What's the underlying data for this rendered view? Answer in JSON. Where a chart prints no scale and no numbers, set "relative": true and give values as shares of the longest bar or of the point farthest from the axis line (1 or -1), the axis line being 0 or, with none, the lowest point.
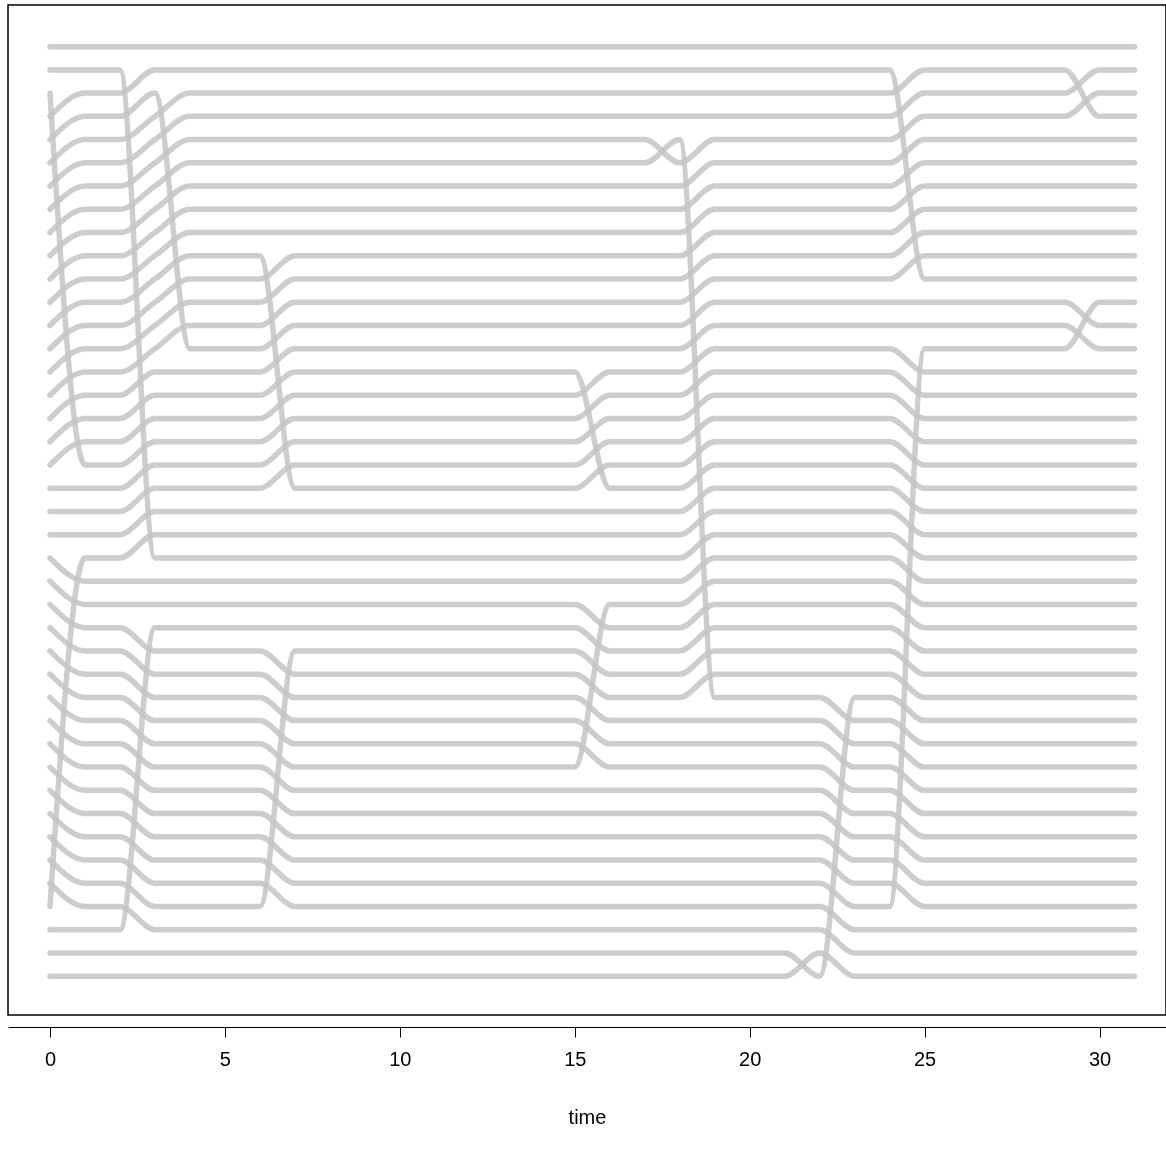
{
  "chart_data": {
    "type": "line",
    "xlabel": "time",
    "relative": true,
    "xlim": [
      -1.2,
      31.9
    ],
    "xticks": [
      0,
      5,
      10,
      15,
      20,
      25,
      30
    ],
    "x": [
      0,
      1,
      2,
      3,
      4,
      5,
      6,
      7,
      8,
      9,
      10,
      11,
      12,
      13,
      14,
      15,
      16,
      17,
      18,
      19,
      20,
      21,
      22,
      23,
      24,
      25,
      26,
      27,
      28,
      29,
      30,
      31
    ],
    "series": [
      {
        "color": "#c4c4c4",
        "values": [
          1,
          1,
          1,
          1,
          1,
          1,
          1,
          1,
          1,
          1,
          1,
          1,
          1,
          1,
          1,
          1,
          1,
          1,
          1,
          1,
          1,
          1,
          1,
          1,
          1,
          1,
          1,
          1,
          1,
          1,
          1,
          1
        ]
      },
      {
        "color": "#c4c4c4",
        "values": [
          0.976,
          0.976,
          0.976,
          0.472,
          0.472,
          0.472,
          0.472,
          0.472,
          0.472,
          0.472,
          0.472,
          0.472,
          0.472,
          0.472,
          0.472,
          0.472,
          0.472,
          0.472,
          0.472,
          0.496,
          0.496,
          0.496,
          0.496,
          0.496,
          0.496,
          0.472,
          0.472,
          0.472,
          0.472,
          0.472,
          0.472,
          0.472
        ]
      },
      {
        "color": "#c4c4c4",
        "values": [
          0.952,
          0.568,
          0.568,
          0.592,
          0.592,
          0.592,
          0.592,
          0.616,
          0.616,
          0.616,
          0.616,
          0.616,
          0.616,
          0.616,
          0.616,
          0.616,
          0.64,
          0.64,
          0.64,
          0.664,
          0.664,
          0.664,
          0.664,
          0.664,
          0.664,
          0.64,
          0.64,
          0.64,
          0.64,
          0.64,
          0.64,
          0.64
        ]
      },
      {
        "color": "#c4c4c4",
        "values": [
          0.928,
          0.952,
          0.952,
          0.976,
          0.976,
          0.976,
          0.976,
          0.976,
          0.976,
          0.976,
          0.976,
          0.976,
          0.976,
          0.976,
          0.976,
          0.976,
          0.976,
          0.976,
          0.976,
          0.976,
          0.976,
          0.976,
          0.976,
          0.976,
          0.976,
          0.76,
          0.76,
          0.76,
          0.76,
          0.76,
          0.76,
          0.76
        ]
      },
      {
        "color": "#c4c4c4",
        "values": [
          0.904,
          0.928,
          0.928,
          0.952,
          0.688,
          0.688,
          0.688,
          0.712,
          0.712,
          0.712,
          0.712,
          0.712,
          0.712,
          0.712,
          0.712,
          0.712,
          0.712,
          0.712,
          0.712,
          0.736,
          0.736,
          0.736,
          0.736,
          0.736,
          0.736,
          0.736,
          0.736,
          0.736,
          0.736,
          0.736,
          0.712,
          0.712
        ]
      },
      {
        "color": "#c4c4c4",
        "values": [
          0.88,
          0.904,
          0.904,
          0.928,
          0.952,
          0.952,
          0.952,
          0.952,
          0.952,
          0.952,
          0.952,
          0.952,
          0.952,
          0.952,
          0.952,
          0.952,
          0.952,
          0.952,
          0.952,
          0.952,
          0.952,
          0.952,
          0.952,
          0.952,
          0.952,
          0.976,
          0.976,
          0.976,
          0.976,
          0.976,
          0.928,
          0.928
        ]
      },
      {
        "color": "#c4c4c4",
        "values": [
          0.856,
          0.88,
          0.88,
          0.904,
          0.928,
          0.928,
          0.928,
          0.928,
          0.928,
          0.928,
          0.928,
          0.928,
          0.928,
          0.928,
          0.928,
          0.928,
          0.928,
          0.928,
          0.928,
          0.928,
          0.928,
          0.928,
          0.928,
          0.928,
          0.928,
          0.952,
          0.952,
          0.952,
          0.952,
          0.952,
          0.976,
          0.976
        ]
      },
      {
        "color": "#c4c4c4",
        "values": [
          0.832,
          0.856,
          0.856,
          0.88,
          0.904,
          0.904,
          0.904,
          0.904,
          0.904,
          0.904,
          0.904,
          0.904,
          0.904,
          0.904,
          0.904,
          0.904,
          0.904,
          0.904,
          0.88,
          0.904,
          0.904,
          0.904,
          0.904,
          0.904,
          0.904,
          0.928,
          0.928,
          0.928,
          0.928,
          0.928,
          0.952,
          0.952
        ]
      },
      {
        "color": "#c4c4c4",
        "values": [
          0.808,
          0.832,
          0.832,
          0.856,
          0.88,
          0.88,
          0.88,
          0.88,
          0.88,
          0.88,
          0.88,
          0.88,
          0.88,
          0.88,
          0.88,
          0.88,
          0.88,
          0.88,
          0.904,
          0.328,
          0.328,
          0.328,
          0.328,
          0.304,
          0.304,
          0.28,
          0.28,
          0.28,
          0.28,
          0.28,
          0.28,
          0.28
        ]
      },
      {
        "color": "#c4c4c4",
        "values": [
          0.784,
          0.808,
          0.808,
          0.832,
          0.856,
          0.856,
          0.856,
          0.856,
          0.856,
          0.856,
          0.856,
          0.856,
          0.856,
          0.856,
          0.856,
          0.856,
          0.856,
          0.856,
          0.856,
          0.88,
          0.88,
          0.88,
          0.88,
          0.88,
          0.88,
          0.904,
          0.904,
          0.904,
          0.904,
          0.904,
          0.904,
          0.904
        ]
      },
      {
        "color": "#c4c4c4",
        "values": [
          0.76,
          0.784,
          0.784,
          0.808,
          0.832,
          0.832,
          0.832,
          0.832,
          0.832,
          0.832,
          0.832,
          0.832,
          0.832,
          0.832,
          0.832,
          0.832,
          0.832,
          0.832,
          0.832,
          0.856,
          0.856,
          0.856,
          0.856,
          0.856,
          0.856,
          0.88,
          0.88,
          0.88,
          0.88,
          0.88,
          0.88,
          0.88
        ]
      },
      {
        "color": "#c4c4c4",
        "values": [
          0.736,
          0.76,
          0.76,
          0.784,
          0.808,
          0.808,
          0.808,
          0.808,
          0.808,
          0.808,
          0.808,
          0.808,
          0.808,
          0.808,
          0.808,
          0.808,
          0.808,
          0.808,
          0.808,
          0.832,
          0.832,
          0.832,
          0.832,
          0.832,
          0.832,
          0.856,
          0.856,
          0.856,
          0.856,
          0.856,
          0.856,
          0.856
        ]
      },
      {
        "color": "#c4c4c4",
        "values": [
          0.712,
          0.736,
          0.736,
          0.76,
          0.784,
          0.784,
          0.784,
          0.544,
          0.544,
          0.544,
          0.544,
          0.544,
          0.544,
          0.544,
          0.544,
          0.544,
          0.568,
          0.568,
          0.568,
          0.592,
          0.592,
          0.592,
          0.592,
          0.592,
          0.592,
          0.568,
          0.568,
          0.568,
          0.568,
          0.568,
          0.568,
          0.568
        ]
      },
      {
        "color": "#c4c4c4",
        "values": [
          0.688,
          0.712,
          0.712,
          0.736,
          0.76,
          0.76,
          0.76,
          0.784,
          0.784,
          0.784,
          0.784,
          0.784,
          0.784,
          0.784,
          0.784,
          0.784,
          0.784,
          0.784,
          0.784,
          0.808,
          0.808,
          0.808,
          0.808,
          0.808,
          0.808,
          0.832,
          0.832,
          0.832,
          0.832,
          0.832,
          0.832,
          0.832
        ]
      },
      {
        "color": "#c4c4c4",
        "values": [
          0.664,
          0.688,
          0.688,
          0.712,
          0.736,
          0.736,
          0.736,
          0.76,
          0.76,
          0.76,
          0.76,
          0.76,
          0.76,
          0.76,
          0.76,
          0.76,
          0.76,
          0.76,
          0.76,
          0.784,
          0.784,
          0.784,
          0.784,
          0.784,
          0.784,
          0.808,
          0.808,
          0.808,
          0.808,
          0.808,
          0.808,
          0.808
        ]
      },
      {
        "color": "#c4c4c4",
        "values": [
          0.64,
          0.664,
          0.664,
          0.688,
          0.712,
          0.712,
          0.712,
          0.736,
          0.736,
          0.736,
          0.736,
          0.736,
          0.736,
          0.736,
          0.736,
          0.736,
          0.736,
          0.736,
          0.736,
          0.76,
          0.76,
          0.76,
          0.76,
          0.76,
          0.76,
          0.784,
          0.784,
          0.784,
          0.784,
          0.784,
          0.784,
          0.784
        ]
      },
      {
        "color": "#c4c4c4",
        "values": [
          0.616,
          0.64,
          0.64,
          0.664,
          0.664,
          0.664,
          0.664,
          0.688,
          0.688,
          0.688,
          0.688,
          0.688,
          0.688,
          0.688,
          0.688,
          0.688,
          0.688,
          0.688,
          0.688,
          0.712,
          0.712,
          0.712,
          0.712,
          0.712,
          0.712,
          0.712,
          0.712,
          0.712,
          0.712,
          0.712,
          0.688,
          0.688
        ]
      },
      {
        "color": "#c4c4c4",
        "values": [
          0.592,
          0.616,
          0.616,
          0.64,
          0.64,
          0.64,
          0.64,
          0.664,
          0.664,
          0.664,
          0.664,
          0.664,
          0.664,
          0.664,
          0.664,
          0.664,
          0.544,
          0.544,
          0.544,
          0.568,
          0.568,
          0.568,
          0.568,
          0.568,
          0.568,
          0.544,
          0.544,
          0.544,
          0.544,
          0.544,
          0.544,
          0.544
        ]
      },
      {
        "color": "#c4c4c4",
        "values": [
          0.568,
          0.592,
          0.592,
          0.616,
          0.616,
          0.616,
          0.616,
          0.64,
          0.64,
          0.64,
          0.64,
          0.64,
          0.64,
          0.64,
          0.64,
          0.64,
          0.664,
          0.664,
          0.664,
          0.688,
          0.688,
          0.688,
          0.688,
          0.688,
          0.688,
          0.664,
          0.664,
          0.664,
          0.664,
          0.664,
          0.664,
          0.664
        ]
      },
      {
        "color": "#c4c4c4",
        "values": [
          0.544,
          0.544,
          0.544,
          0.568,
          0.568,
          0.568,
          0.568,
          0.592,
          0.592,
          0.592,
          0.592,
          0.592,
          0.592,
          0.592,
          0.592,
          0.592,
          0.616,
          0.616,
          0.616,
          0.64,
          0.64,
          0.64,
          0.64,
          0.64,
          0.64,
          0.616,
          0.616,
          0.616,
          0.616,
          0.616,
          0.616,
          0.616
        ]
      },
      {
        "color": "#c4c4c4",
        "values": [
          0.52,
          0.52,
          0.52,
          0.544,
          0.544,
          0.544,
          0.544,
          0.568,
          0.568,
          0.568,
          0.568,
          0.568,
          0.568,
          0.568,
          0.568,
          0.568,
          0.592,
          0.592,
          0.592,
          0.616,
          0.616,
          0.616,
          0.616,
          0.616,
          0.616,
          0.592,
          0.592,
          0.592,
          0.592,
          0.592,
          0.592,
          0.592
        ]
      },
      {
        "color": "#c4c4c4",
        "values": [
          0.496,
          0.496,
          0.496,
          0.52,
          0.52,
          0.52,
          0.52,
          0.52,
          0.52,
          0.52,
          0.52,
          0.52,
          0.52,
          0.52,
          0.52,
          0.52,
          0.52,
          0.52,
          0.52,
          0.544,
          0.544,
          0.544,
          0.544,
          0.544,
          0.544,
          0.52,
          0.52,
          0.52,
          0.52,
          0.52,
          0.52,
          0.52
        ]
      },
      {
        "color": "#c4c4c4",
        "values": [
          0.472,
          0.448,
          0.448,
          0.448,
          0.448,
          0.448,
          0.448,
          0.448,
          0.448,
          0.448,
          0.448,
          0.448,
          0.448,
          0.448,
          0.448,
          0.448,
          0.448,
          0.448,
          0.448,
          0.472,
          0.472,
          0.472,
          0.472,
          0.472,
          0.472,
          0.448,
          0.448,
          0.448,
          0.448,
          0.448,
          0.448,
          0.448
        ]
      },
      {
        "color": "#c4c4c4",
        "values": [
          0.448,
          0.424,
          0.424,
          0.424,
          0.424,
          0.424,
          0.424,
          0.424,
          0.424,
          0.424,
          0.424,
          0.424,
          0.424,
          0.424,
          0.424,
          0.424,
          0.4,
          0.4,
          0.4,
          0.424,
          0.424,
          0.424,
          0.424,
          0.424,
          0.424,
          0.4,
          0.4,
          0.4,
          0.4,
          0.4,
          0.4,
          0.4
        ]
      },
      {
        "color": "#c4c4c4",
        "values": [
          0.424,
          0.4,
          0.4,
          0.376,
          0.376,
          0.376,
          0.376,
          0.352,
          0.352,
          0.352,
          0.352,
          0.352,
          0.352,
          0.352,
          0.352,
          0.352,
          0.328,
          0.328,
          0.328,
          0.352,
          0.352,
          0.352,
          0.352,
          0.352,
          0.352,
          0.328,
          0.328,
          0.328,
          0.328,
          0.328,
          0.328,
          0.328
        ]
      },
      {
        "color": "#c4c4c4",
        "values": [
          0.4,
          0.376,
          0.376,
          0.352,
          0.352,
          0.352,
          0.352,
          0.328,
          0.328,
          0.328,
          0.328,
          0.328,
          0.328,
          0.328,
          0.328,
          0.328,
          0.304,
          0.304,
          0.304,
          0.304,
          0.304,
          0.304,
          0.304,
          0.28,
          0.28,
          0.256,
          0.256,
          0.256,
          0.256,
          0.256,
          0.256,
          0.256
        ]
      },
      {
        "color": "#c4c4c4",
        "values": [
          0.376,
          0.352,
          0.352,
          0.328,
          0.328,
          0.328,
          0.328,
          0.304,
          0.304,
          0.304,
          0.304,
          0.304,
          0.304,
          0.304,
          0.304,
          0.304,
          0.28,
          0.28,
          0.28,
          0.28,
          0.28,
          0.28,
          0.28,
          0.256,
          0.256,
          0.232,
          0.232,
          0.232,
          0.232,
          0.232,
          0.232,
          0.232
        ]
      },
      {
        "color": "#c4c4c4",
        "values": [
          0.352,
          0.328,
          0.328,
          0.304,
          0.304,
          0.304,
          0.304,
          0.28,
          0.28,
          0.28,
          0.28,
          0.28,
          0.28,
          0.28,
          0.28,
          0.28,
          0.256,
          0.256,
          0.256,
          0.256,
          0.256,
          0.256,
          0.256,
          0.232,
          0.232,
          0.208,
          0.208,
          0.208,
          0.208,
          0.208,
          0.208,
          0.208
        ]
      },
      {
        "color": "#c4c4c4",
        "values": [
          0.328,
          0.304,
          0.304,
          0.28,
          0.28,
          0.28,
          0.28,
          0.256,
          0.256,
          0.256,
          0.256,
          0.256,
          0.256,
          0.256,
          0.256,
          0.256,
          0.424,
          0.424,
          0.424,
          0.448,
          0.448,
          0.448,
          0.448,
          0.448,
          0.448,
          0.424,
          0.424,
          0.424,
          0.424,
          0.424,
          0.424,
          0.424
        ]
      },
      {
        "color": "#c4c4c4",
        "values": [
          0.304,
          0.28,
          0.28,
          0.256,
          0.256,
          0.256,
          0.256,
          0.232,
          0.232,
          0.232,
          0.232,
          0.232,
          0.232,
          0.232,
          0.232,
          0.232,
          0.232,
          0.232,
          0.232,
          0.232,
          0.232,
          0.232,
          0.232,
          0.208,
          0.208,
          0.184,
          0.184,
          0.184,
          0.184,
          0.184,
          0.184,
          0.184
        ]
      },
      {
        "color": "#c4c4c4",
        "values": [
          0.28,
          0.256,
          0.256,
          0.232,
          0.232,
          0.232,
          0.232,
          0.208,
          0.208,
          0.208,
          0.208,
          0.208,
          0.208,
          0.208,
          0.208,
          0.208,
          0.208,
          0.208,
          0.208,
          0.208,
          0.208,
          0.208,
          0.208,
          0.184,
          0.184,
          0.16,
          0.16,
          0.16,
          0.16,
          0.16,
          0.16,
          0.16
        ]
      },
      {
        "color": "#c4c4c4",
        "values": [
          0.256,
          0.232,
          0.232,
          0.208,
          0.208,
          0.208,
          0.208,
          0.184,
          0.184,
          0.184,
          0.184,
          0.184,
          0.184,
          0.184,
          0.184,
          0.184,
          0.184,
          0.184,
          0.184,
          0.184,
          0.184,
          0.184,
          0.184,
          0.16,
          0.16,
          0.136,
          0.136,
          0.136,
          0.136,
          0.136,
          0.136,
          0.136
        ]
      },
      {
        "color": "#c4c4c4",
        "values": [
          0.232,
          0.208,
          0.208,
          0.184,
          0.184,
          0.184,
          0.184,
          0.16,
          0.16,
          0.16,
          0.16,
          0.16,
          0.16,
          0.16,
          0.16,
          0.16,
          0.16,
          0.16,
          0.16,
          0.16,
          0.16,
          0.16,
          0.16,
          0.136,
          0.136,
          0.112,
          0.112,
          0.112,
          0.112,
          0.112,
          0.112,
          0.112
        ]
      },
      {
        "color": "#c4c4c4",
        "values": [
          0.208,
          0.184,
          0.184,
          0.16,
          0.16,
          0.16,
          0.16,
          0.136,
          0.136,
          0.136,
          0.136,
          0.136,
          0.136,
          0.136,
          0.136,
          0.136,
          0.136,
          0.136,
          0.136,
          0.136,
          0.136,
          0.136,
          0.136,
          0.112,
          0.112,
          0.688,
          0.688,
          0.688,
          0.688,
          0.688,
          0.736,
          0.736
        ]
      },
      {
        "color": "#c4c4c4",
        "values": [
          0.184,
          0.16,
          0.16,
          0.136,
          0.136,
          0.136,
          0.136,
          0.112,
          0.112,
          0.112,
          0.112,
          0.112,
          0.112,
          0.112,
          0.112,
          0.112,
          0.112,
          0.112,
          0.112,
          0.112,
          0.112,
          0.112,
          0.112,
          0.088,
          0.088,
          0.088,
          0.088,
          0.088,
          0.088,
          0.088,
          0.088,
          0.088
        ]
      },
      {
        "color": "#c4c4c4",
        "values": [
          0.16,
          0.136,
          0.136,
          0.112,
          0.112,
          0.112,
          0.112,
          0.376,
          0.376,
          0.376,
          0.376,
          0.376,
          0.376,
          0.376,
          0.376,
          0.376,
          0.352,
          0.352,
          0.352,
          0.376,
          0.376,
          0.376,
          0.376,
          0.376,
          0.376,
          0.352,
          0.352,
          0.352,
          0.352,
          0.352,
          0.352,
          0.352
        ]
      },
      {
        "color": "#c4c4c4",
        "values": [
          0.136,
          0.112,
          0.112,
          0.088,
          0.088,
          0.088,
          0.088,
          0.088,
          0.088,
          0.088,
          0.088,
          0.088,
          0.088,
          0.088,
          0.088,
          0.088,
          0.088,
          0.088,
          0.088,
          0.088,
          0.088,
          0.088,
          0.088,
          0.064,
          0.064,
          0.064,
          0.064,
          0.064,
          0.064,
          0.064,
          0.064,
          0.064
        ]
      },
      {
        "color": "#c4c4c4",
        "values": [
          0.112,
          0.472,
          0.472,
          0.496,
          0.496,
          0.496,
          0.496,
          0.496,
          0.496,
          0.496,
          0.496,
          0.496,
          0.496,
          0.496,
          0.496,
          0.496,
          0.496,
          0.496,
          0.496,
          0.52,
          0.52,
          0.52,
          0.52,
          0.52,
          0.52,
          0.496,
          0.496,
          0.496,
          0.496,
          0.496,
          0.496,
          0.496
        ]
      },
      {
        "color": "#c4c4c4",
        "values": [
          0.088,
          0.088,
          0.088,
          0.4,
          0.4,
          0.4,
          0.4,
          0.4,
          0.4,
          0.4,
          0.4,
          0.4,
          0.4,
          0.4,
          0.4,
          0.4,
          0.376,
          0.376,
          0.376,
          0.4,
          0.4,
          0.4,
          0.4,
          0.4,
          0.4,
          0.376,
          0.376,
          0.376,
          0.376,
          0.376,
          0.376,
          0.376
        ]
      },
      {
        "color": "#c4c4c4",
        "values": [
          0.064,
          0.064,
          0.064,
          0.064,
          0.064,
          0.064,
          0.064,
          0.064,
          0.064,
          0.064,
          0.064,
          0.064,
          0.064,
          0.064,
          0.064,
          0.064,
          0.064,
          0.064,
          0.064,
          0.064,
          0.064,
          0.064,
          0.04,
          0.328,
          0.328,
          0.304,
          0.304,
          0.304,
          0.304,
          0.304,
          0.304,
          0.304
        ]
      },
      {
        "color": "#c4c4c4",
        "values": [
          0.04,
          0.04,
          0.04,
          0.04,
          0.04,
          0.04,
          0.04,
          0.04,
          0.04,
          0.04,
          0.04,
          0.04,
          0.04,
          0.04,
          0.04,
          0.04,
          0.04,
          0.04,
          0.04,
          0.04,
          0.04,
          0.04,
          0.064,
          0.04,
          0.04,
          0.04,
          0.04,
          0.04,
          0.04,
          0.04,
          0.04,
          0.04
        ]
      }
    ]
  }
}
